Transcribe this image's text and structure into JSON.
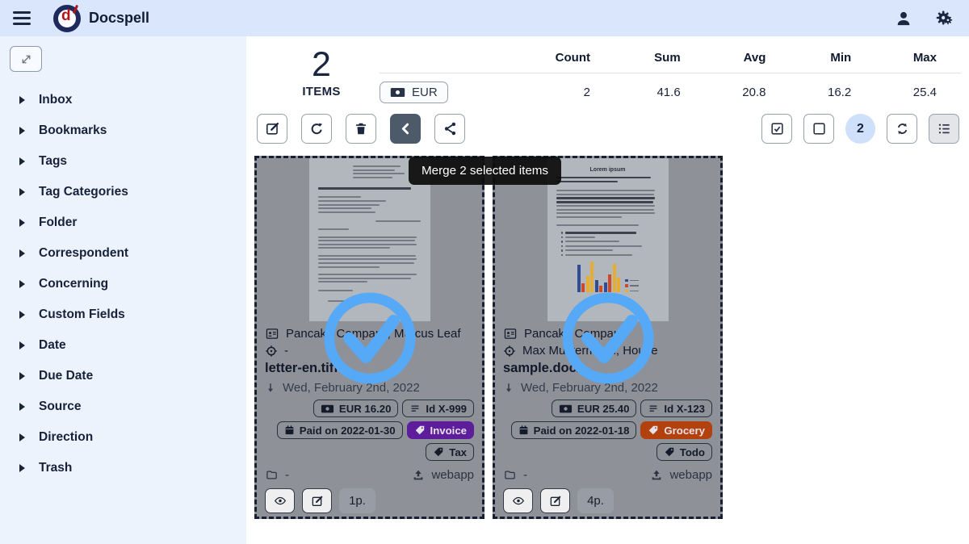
{
  "topbar": {
    "app_title": "Docspell"
  },
  "sidebar": {
    "items": [
      "Inbox",
      "Bookmarks",
      "Tags",
      "Tag Categories",
      "Folder",
      "Correspondent",
      "Concerning",
      "Custom Fields",
      "Date",
      "Due Date",
      "Source",
      "Direction",
      "Trash"
    ]
  },
  "summary": {
    "count": "2",
    "count_label": "ITEMS",
    "currency_button": "EUR",
    "table": {
      "headers": [
        "Count",
        "Sum",
        "Avg",
        "Min",
        "Max"
      ],
      "values": [
        "2",
        "41.6",
        "20.8",
        "16.2",
        "25.4"
      ]
    }
  },
  "toolbar": {
    "selected_count": "2",
    "merge_tooltip": "Merge 2 selected items"
  },
  "cards": [
    {
      "correspondent": "Pancake Company, Marcus Leaf",
      "concerning": "-",
      "name": "letter-en.tiff",
      "date": "Wed, February 2nd, 2022",
      "amount": "EUR  16.20",
      "item_id": "Id  X-999",
      "due": "Paid on  2022-01-30",
      "tags": [
        {
          "label": "Invoice",
          "color": "#5e1d9a"
        },
        {
          "label": "Tax",
          "color": ""
        }
      ],
      "folder": "-",
      "source": "webapp",
      "pages": "1p."
    },
    {
      "correspondent": "Pancake Company",
      "concerning": "Max Mustermann, House",
      "name": "sample.docx",
      "date": "Wed, February 2nd, 2022",
      "amount": "EUR  25.40",
      "item_id": "Id  X-123",
      "due": "Paid on  2022-01-18",
      "tags": [
        {
          "label": "Grocery",
          "color": "#b2410e"
        },
        {
          "label": "Todo",
          "color": ""
        }
      ],
      "folder": "-",
      "source": "webapp",
      "pages": "4p."
    }
  ],
  "thumbnails": {
    "doc2_title": "Lorem ipsum"
  },
  "icons": {
    "topbar": [
      "hamburger-icon",
      "docspell-logo",
      "user-icon",
      "gears-icon"
    ],
    "toolbar_left": [
      "edit-icon",
      "refresh-icon",
      "trash-icon",
      "merge-icon",
      "share-icon"
    ],
    "toolbar_right": [
      "check-square-icon",
      "square-icon",
      "sync-icon",
      "list-view-icon"
    ],
    "card": [
      "address-card-icon",
      "crosshair-icon",
      "arrow-down-icon",
      "money-icon",
      "id-bars-icon",
      "calendar-icon",
      "tag-icon",
      "folder-icon",
      "upload-icon",
      "eye-icon",
      "check-circle-icon"
    ]
  },
  "colors": {
    "topbar_bg": "#d9e6fb",
    "sidebar_bg": "#edf3fd",
    "check_accent": "#55a9f7",
    "selected_badge_bg": "#cfe0fb",
    "merge_button_bg": "#4d5a6a"
  }
}
